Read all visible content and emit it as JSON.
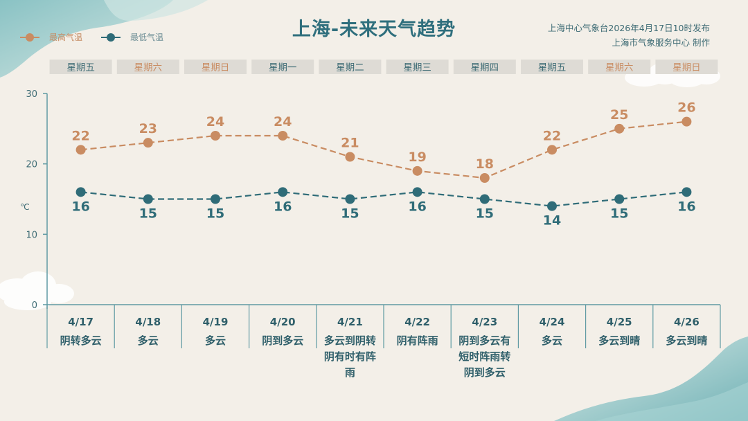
{
  "title": "上海-未来天气趋势",
  "issuer": {
    "line1": "上海中心气象台2026年4月17日10时发布",
    "line2": "上海市气象服务中心 制作"
  },
  "legend": {
    "high": "最高气温",
    "low": "最低气温"
  },
  "colors": {
    "high": "#c98c62",
    "low": "#2f6c78",
    "axis": "#5f9aa3",
    "weekday_weekend": "#c98c62",
    "weekday_normal": "#3d6b74",
    "weekday_bg": "#dedbd5"
  },
  "chart_data": {
    "type": "line",
    "ylabel": "℃",
    "ylim": [
      0,
      30
    ],
    "yticks": [
      0,
      10,
      20,
      30
    ],
    "grid": false,
    "legend_position": "top-left",
    "weekdays": [
      "星期五",
      "星期六",
      "星期日",
      "星期一",
      "星期二",
      "星期三",
      "星期四",
      "星期五",
      "星期六",
      "星期日"
    ],
    "weekend_flags": [
      false,
      true,
      true,
      false,
      false,
      false,
      false,
      false,
      true,
      true
    ],
    "categories": [
      "4/17",
      "4/18",
      "4/19",
      "4/20",
      "4/21",
      "4/22",
      "4/23",
      "4/24",
      "4/25",
      "4/26"
    ],
    "weather": [
      [
        "阴转多云"
      ],
      [
        "多云"
      ],
      [
        "多云"
      ],
      [
        "阴到多云"
      ],
      [
        "多云到阴转",
        "阴有时有阵",
        "雨"
      ],
      [
        "阴有阵雨"
      ],
      [
        "阴到多云有",
        "短时阵雨转",
        "阴到多云"
      ],
      [
        "多云"
      ],
      [
        "多云到晴"
      ],
      [
        "多云到晴"
      ]
    ],
    "series": [
      {
        "name": "最高气温",
        "values": [
          22,
          23,
          24,
          24,
          21,
          19,
          18,
          22,
          25,
          26
        ]
      },
      {
        "name": "最低气温",
        "values": [
          16,
          15,
          15,
          16,
          15,
          16,
          15,
          14,
          15,
          16
        ]
      }
    ]
  }
}
